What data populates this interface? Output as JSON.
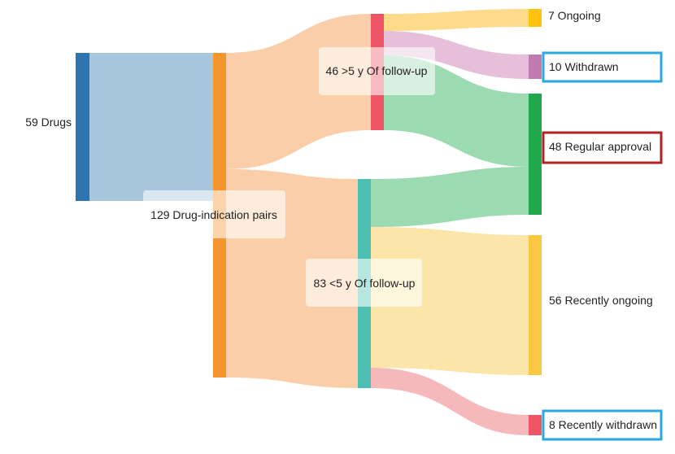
{
  "nodes": {
    "drugs": {
      "label": "59 Drugs",
      "color": "#2E75B0"
    },
    "pairs": {
      "label": "129 Drug-indication pairs",
      "color": "#F5952E"
    },
    "over5": {
      "label": "46 >5 y Of follow-up",
      "color": "#EE5566"
    },
    "under5": {
      "label": "83 <5 y Of follow-up",
      "color": "#4DBFB2"
    },
    "ongoing": {
      "label": "7 Ongoing",
      "color": "#FFC20E"
    },
    "withdrawn": {
      "label": "10 Withdrawn",
      "color": "#C07AAE",
      "box_color": "#29A9E1"
    },
    "regular": {
      "label": "48 Regular approval",
      "color": "#22A84C",
      "box_color": "#B22222"
    },
    "rec_ongoing": {
      "label": "56 Recently ongoing",
      "color": "#F9C840"
    },
    "rec_withdrawn": {
      "label": "8 Recently withdrawn",
      "color": "#EE5566",
      "box_color": "#29A9E1"
    }
  },
  "link_colors": {
    "drugs_pairs": "#A3C3DA",
    "pairs_split": "#F9CBA4",
    "to_ongoing": "#FDD984",
    "to_withdrawn": "#E5BDD8",
    "to_regular": "#97D8AD",
    "to_rec_ongoing": "#FBE4A4",
    "to_rec_withdrawn": "#F4B5B8"
  }
}
